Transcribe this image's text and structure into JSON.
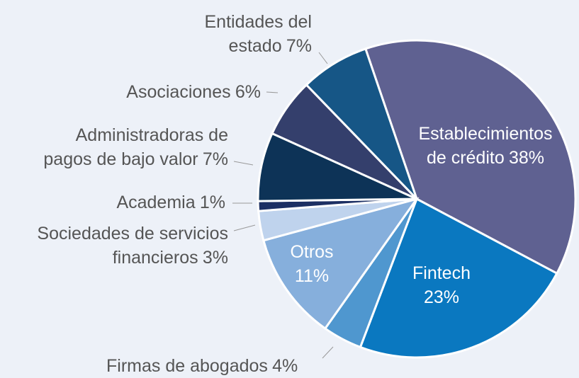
{
  "chart_data": {
    "type": "pie",
    "categories": [
      "Establecimientos\nde crédito",
      "Fintech",
      "Firmas de abogados",
      "Otros",
      "Sociedades de servicios\nfinancieros",
      "Academia",
      "Administradoras de\npagos de bajo valor",
      "Asociaciones",
      "Entidades del\nestado"
    ],
    "values": [
      38,
      23,
      4,
      11,
      3,
      1,
      7,
      6,
      7
    ],
    "value_labels": [
      "38%",
      "23%",
      "4%",
      "11%",
      "3%",
      "1%",
      "7%",
      "6%",
      "7%"
    ],
    "colors": [
      "#5f6191",
      "#0a78c0",
      "#4f97cf",
      "#86afdc",
      "#bfd3ed",
      "#1c2f63",
      "#0d3357",
      "#343f6c",
      "#165686"
    ]
  }
}
